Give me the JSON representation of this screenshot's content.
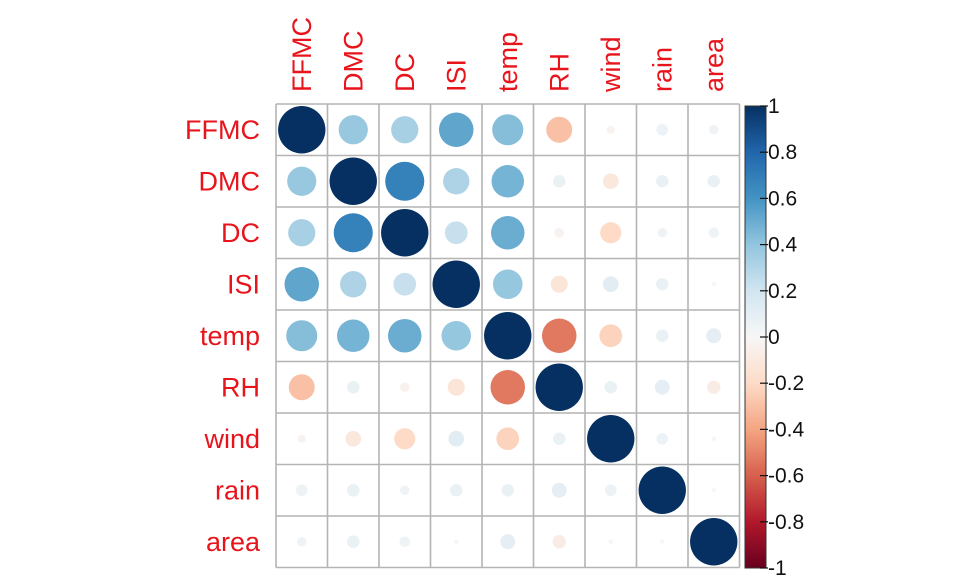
{
  "chart_data": {
    "type": "heatmap",
    "variables": [
      "FFMC",
      "DMC",
      "DC",
      "ISI",
      "temp",
      "RH",
      "wind",
      "rain",
      "area"
    ],
    "values": [
      [
        1.0,
        0.38,
        0.33,
        0.53,
        0.43,
        -0.3,
        -0.03,
        0.06,
        0.04
      ],
      [
        0.38,
        1.0,
        0.68,
        0.31,
        0.47,
        0.07,
        -0.11,
        0.07,
        0.07
      ],
      [
        0.33,
        0.68,
        1.0,
        0.23,
        0.5,
        -0.04,
        -0.2,
        0.04,
        0.05
      ],
      [
        0.53,
        0.31,
        0.23,
        1.0,
        0.39,
        -0.13,
        0.11,
        0.07,
        0.01
      ],
      [
        0.43,
        0.47,
        0.5,
        0.39,
        1.0,
        -0.53,
        -0.23,
        0.07,
        0.1
      ],
      [
        -0.3,
        0.07,
        -0.04,
        -0.13,
        -0.53,
        1.0,
        0.07,
        0.1,
        -0.08
      ],
      [
        -0.03,
        -0.11,
        -0.2,
        0.11,
        -0.23,
        0.07,
        1.0,
        0.06,
        0.01
      ],
      [
        0.06,
        0.07,
        0.04,
        0.07,
        0.07,
        0.1,
        0.06,
        1.0,
        -0.01
      ],
      [
        0.04,
        0.07,
        0.05,
        0.01,
        0.1,
        -0.08,
        0.01,
        -0.01,
        1.0
      ]
    ],
    "colorbar": {
      "range": [
        -1,
        1
      ],
      "tick_labels": [
        "1",
        "0.8",
        "0.6",
        "0.4",
        "0.2",
        "0",
        "-0.2",
        "-0.4",
        "-0.6",
        "-0.8",
        "-1"
      ],
      "tick_values": [
        1,
        0.8,
        0.6,
        0.4,
        0.2,
        0,
        -0.2,
        -0.4,
        -0.6,
        -0.8,
        -1
      ]
    },
    "colors": {
      "negative_end": "#67001f",
      "neutral": "#ffffff",
      "positive_end": "#053061",
      "label_color": "#e8141c",
      "grid_color": "#b4b4b4"
    },
    "title": "",
    "grid": true,
    "legend": "right"
  }
}
